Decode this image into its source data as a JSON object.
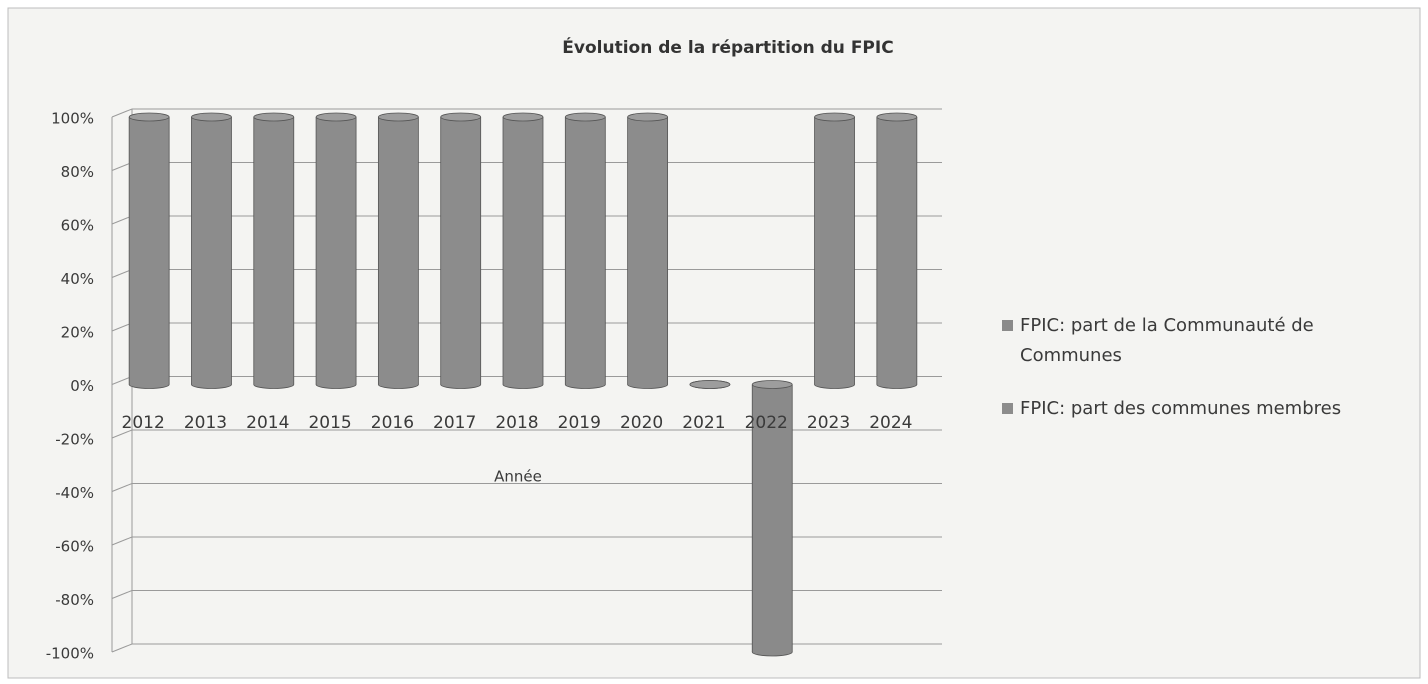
{
  "chart_data": {
    "type": "bar",
    "stacked": true,
    "title": "Évolution de la répartition du FPIC",
    "x_label": "Année",
    "categories": [
      "2012",
      "2013",
      "2014",
      "2015",
      "2016",
      "2017",
      "2018",
      "2019",
      "2020",
      "2021",
      "2022",
      "2023",
      "2024"
    ],
    "series": [
      {
        "name": "FPIC: part de la Communauté de Communes",
        "color": "#8a8a8a",
        "values": [
          0,
          0,
          0,
          0,
          0,
          0,
          0,
          0,
          0,
          0,
          -100,
          0,
          0
        ]
      },
      {
        "name": "FPIC: part des communes membres",
        "color": "#8c8c8c",
        "values": [
          100,
          100,
          100,
          100,
          100,
          100,
          100,
          100,
          100,
          0,
          0,
          100,
          100
        ]
      }
    ],
    "ylim": [
      -100,
      100
    ],
    "yticks": [
      {
        "value": -100,
        "label": "-100%"
      },
      {
        "value": -80,
        "label": "-80%"
      },
      {
        "value": -60,
        "label": "-60%"
      },
      {
        "value": -40,
        "label": "-40%"
      },
      {
        "value": -20,
        "label": "-20%"
      },
      {
        "value": 0,
        "label": "0%"
      },
      {
        "value": 20,
        "label": "20%"
      },
      {
        "value": 40,
        "label": "40%"
      },
      {
        "value": 60,
        "label": "60%"
      },
      {
        "value": 80,
        "label": "80%"
      },
      {
        "value": 100,
        "label": "100%"
      }
    ],
    "grid": true,
    "legend": "right"
  }
}
